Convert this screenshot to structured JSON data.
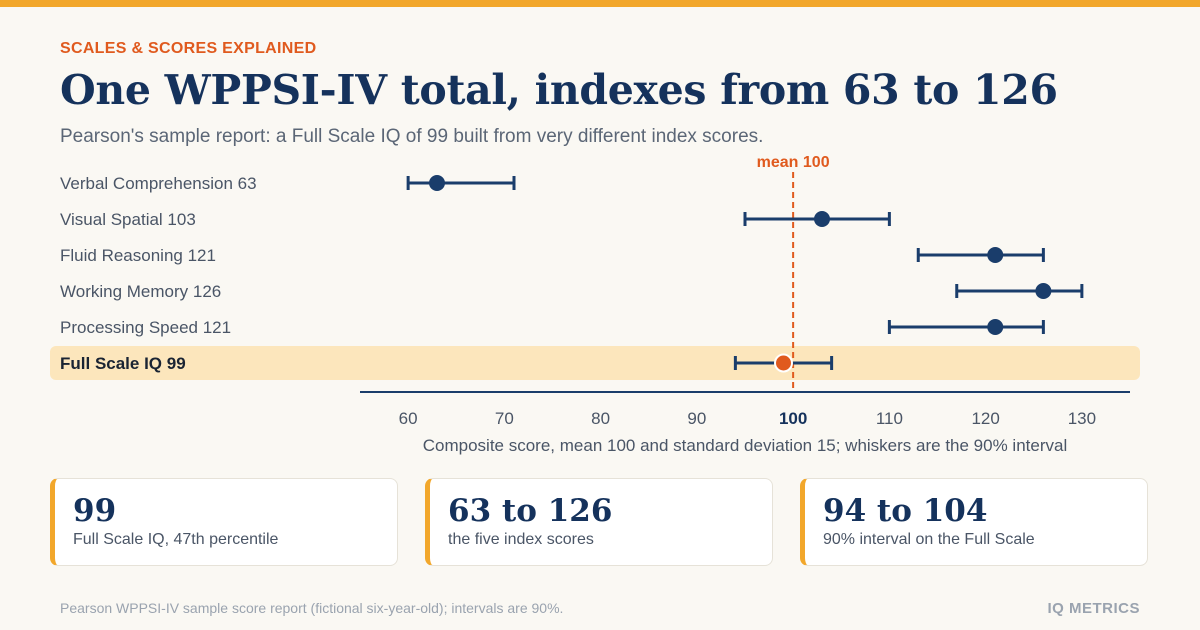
{
  "header": {
    "eyebrow": "SCALES & SCORES EXPLAINED",
    "title": "One WPPSI-IV total, indexes from 63 to 126",
    "subtitle": "Pearson's sample report: a Full Scale IQ of 99 built from very different index scores."
  },
  "chart_data": {
    "type": "dot-interval",
    "categories": [
      "Verbal Comprehension 63",
      "Visual Spatial 103",
      "Fluid Reasoning 121",
      "Working Memory 126",
      "Processing Speed 121",
      "Full Scale IQ 99"
    ],
    "scores": [
      63,
      103,
      121,
      126,
      121,
      99
    ],
    "interval_low": [
      60,
      95,
      113,
      117,
      110,
      94
    ],
    "interval_high": [
      71,
      110,
      126,
      130,
      126,
      104
    ],
    "highlighted_category": "Full Scale IQ 99",
    "reference_line": {
      "value": 100,
      "label": "mean 100"
    },
    "xlim": [
      55,
      135
    ],
    "xticks": [
      60,
      70,
      80,
      90,
      100,
      110,
      120,
      130
    ],
    "xlabel": "Composite score, mean 100 and standard deviation 15; whiskers are the 90% interval",
    "colors": {
      "index": "#1a3d6b",
      "total": "#e05a1e",
      "highlight_band": "#fce6bc",
      "reference": "#e05a1e"
    }
  },
  "cards": [
    {
      "value": "99",
      "label": "Full Scale IQ, 47th percentile"
    },
    {
      "value": "63 to 126",
      "label": "the five index scores"
    },
    {
      "value": "94 to 104",
      "label": "90% interval on the Full Scale"
    }
  ],
  "footer": {
    "note": "Pearson WPPSI-IV sample score report (fictional six-year-old); intervals are 90%.",
    "brand": "IQ METRICS"
  }
}
